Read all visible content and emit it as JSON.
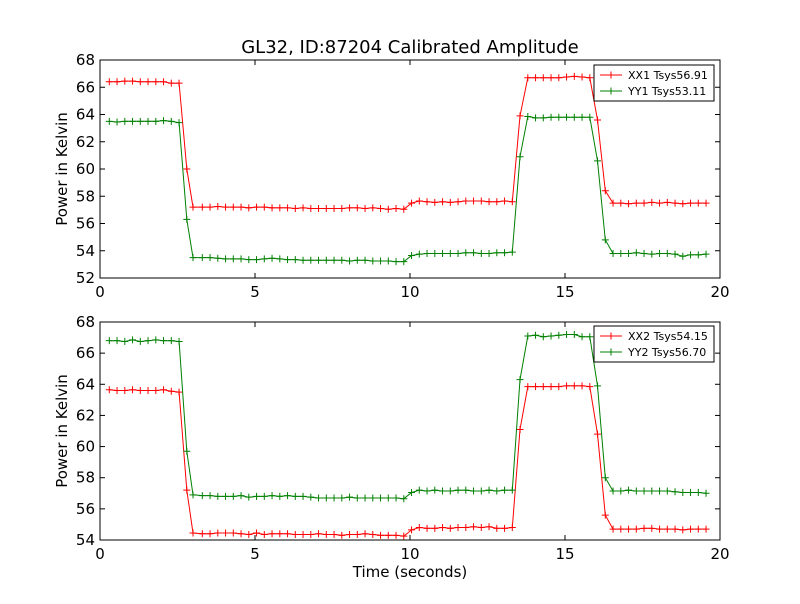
{
  "chart_data": [
    {
      "type": "line",
      "title": "GL32, ID:87204 Calibrated Amplitude",
      "xlabel": "",
      "ylabel": "Power in Kelvin",
      "xlim": [
        0,
        20
      ],
      "ylim": [
        52,
        68
      ],
      "xticks": [
        0,
        5,
        10,
        15,
        20
      ],
      "yticks": [
        52,
        54,
        56,
        58,
        60,
        62,
        64,
        66,
        68
      ],
      "legend_position": "top-right",
      "x": [
        0.3,
        0.55,
        0.8,
        1.05,
        1.3,
        1.55,
        1.8,
        2.05,
        2.3,
        2.55,
        2.8,
        3.0,
        3.3,
        3.55,
        3.8,
        4.05,
        4.3,
        4.55,
        4.8,
        5.05,
        5.3,
        5.55,
        5.8,
        6.05,
        6.3,
        6.55,
        6.8,
        7.05,
        7.3,
        7.55,
        7.8,
        8.05,
        8.3,
        8.55,
        8.8,
        9.05,
        9.3,
        9.55,
        9.8,
        10.05,
        10.3,
        10.55,
        10.8,
        11.05,
        11.3,
        11.55,
        11.8,
        12.05,
        12.3,
        12.55,
        12.8,
        13.05,
        13.3,
        13.55,
        13.8,
        14.05,
        14.3,
        14.55,
        14.8,
        15.05,
        15.3,
        15.55,
        15.8,
        16.05,
        16.3,
        16.55,
        16.8,
        17.05,
        17.3,
        17.55,
        17.8,
        18.05,
        18.3,
        18.55,
        18.8,
        19.05,
        19.3,
        19.55
      ],
      "series": [
        {
          "name": "XX1 Tsys56.91",
          "color": "#ff0000",
          "values": [
            66.4,
            66.4,
            66.45,
            66.45,
            66.4,
            66.4,
            66.4,
            66.4,
            66.3,
            66.3,
            60.0,
            57.2,
            57.2,
            57.2,
            57.25,
            57.2,
            57.2,
            57.2,
            57.15,
            57.2,
            57.2,
            57.15,
            57.15,
            57.15,
            57.1,
            57.15,
            57.1,
            57.1,
            57.1,
            57.1,
            57.1,
            57.15,
            57.15,
            57.1,
            57.15,
            57.1,
            57.05,
            57.1,
            57.05,
            57.5,
            57.65,
            57.6,
            57.55,
            57.6,
            57.55,
            57.6,
            57.65,
            57.65,
            57.65,
            57.6,
            57.6,
            57.65,
            57.6,
            63.9,
            66.7,
            66.7,
            66.7,
            66.7,
            66.7,
            66.75,
            66.8,
            66.75,
            66.7,
            63.6,
            58.4,
            57.5,
            57.5,
            57.45,
            57.5,
            57.5,
            57.55,
            57.5,
            57.55,
            57.5,
            57.45,
            57.5,
            57.5,
            57.5
          ]
        },
        {
          "name": "YY1 Tsys53.11",
          "color": "#008000",
          "values": [
            63.5,
            63.45,
            63.5,
            63.5,
            63.5,
            63.5,
            63.5,
            63.55,
            63.5,
            63.4,
            56.3,
            53.5,
            53.5,
            53.5,
            53.45,
            53.4,
            53.4,
            53.4,
            53.35,
            53.35,
            53.4,
            53.45,
            53.4,
            53.35,
            53.35,
            53.3,
            53.3,
            53.3,
            53.3,
            53.3,
            53.3,
            53.25,
            53.3,
            53.3,
            53.25,
            53.25,
            53.25,
            53.2,
            53.2,
            53.65,
            53.75,
            53.8,
            53.8,
            53.8,
            53.8,
            53.8,
            53.85,
            53.85,
            53.8,
            53.8,
            53.85,
            53.85,
            53.9,
            60.9,
            63.85,
            63.75,
            63.75,
            63.8,
            63.8,
            63.8,
            63.8,
            63.8,
            63.8,
            60.6,
            54.8,
            53.8,
            53.8,
            53.8,
            53.85,
            53.8,
            53.75,
            53.8,
            53.8,
            53.75,
            53.6,
            53.7,
            53.7,
            53.75
          ]
        }
      ]
    },
    {
      "type": "line",
      "title": "",
      "xlabel": "Time (seconds)",
      "ylabel": "Power in Kelvin",
      "xlim": [
        0,
        20
      ],
      "ylim": [
        54,
        68
      ],
      "xticks": [
        0,
        5,
        10,
        15,
        20
      ],
      "yticks": [
        54,
        56,
        58,
        60,
        62,
        64,
        66,
        68
      ],
      "legend_position": "top-right",
      "x": [
        0.3,
        0.55,
        0.8,
        1.05,
        1.3,
        1.55,
        1.8,
        2.05,
        2.3,
        2.55,
        2.8,
        3.0,
        3.3,
        3.55,
        3.8,
        4.05,
        4.3,
        4.55,
        4.8,
        5.05,
        5.3,
        5.55,
        5.8,
        6.05,
        6.3,
        6.55,
        6.8,
        7.05,
        7.3,
        7.55,
        7.8,
        8.05,
        8.3,
        8.55,
        8.8,
        9.05,
        9.3,
        9.55,
        9.8,
        10.05,
        10.3,
        10.55,
        10.8,
        11.05,
        11.3,
        11.55,
        11.8,
        12.05,
        12.3,
        12.55,
        12.8,
        13.05,
        13.3,
        13.55,
        13.8,
        14.05,
        14.3,
        14.55,
        14.8,
        15.05,
        15.3,
        15.55,
        15.8,
        16.05,
        16.3,
        16.55,
        16.8,
        17.05,
        17.3,
        17.55,
        17.8,
        18.05,
        18.3,
        18.55,
        18.8,
        19.05,
        19.3,
        19.55
      ],
      "series": [
        {
          "name": "XX2 Tsys54.15",
          "color": "#ff0000",
          "values": [
            63.65,
            63.6,
            63.6,
            63.65,
            63.6,
            63.6,
            63.6,
            63.65,
            63.55,
            63.5,
            57.2,
            54.45,
            54.4,
            54.4,
            54.45,
            54.45,
            54.45,
            54.4,
            54.35,
            54.45,
            54.35,
            54.4,
            54.4,
            54.4,
            54.35,
            54.35,
            54.35,
            54.4,
            54.35,
            54.35,
            54.3,
            54.35,
            54.35,
            54.4,
            54.35,
            54.3,
            54.3,
            54.3,
            54.25,
            54.65,
            54.8,
            54.75,
            54.75,
            54.8,
            54.75,
            54.8,
            54.8,
            54.85,
            54.8,
            54.85,
            54.75,
            54.75,
            54.8,
            61.1,
            63.85,
            63.85,
            63.85,
            63.85,
            63.85,
            63.9,
            63.9,
            63.9,
            63.85,
            60.8,
            55.6,
            54.7,
            54.7,
            54.7,
            54.7,
            54.75,
            54.75,
            54.7,
            54.7,
            54.7,
            54.65,
            54.7,
            54.7,
            54.7
          ]
        },
        {
          "name": "YY2 Tsys56.70",
          "color": "#008000",
          "values": [
            66.8,
            66.8,
            66.75,
            66.85,
            66.75,
            66.8,
            66.85,
            66.8,
            66.8,
            66.75,
            59.7,
            56.9,
            56.85,
            56.85,
            56.8,
            56.8,
            56.8,
            56.85,
            56.75,
            56.8,
            56.8,
            56.85,
            56.8,
            56.85,
            56.8,
            56.8,
            56.75,
            56.7,
            56.7,
            56.7,
            56.7,
            56.75,
            56.7,
            56.7,
            56.7,
            56.7,
            56.7,
            56.7,
            56.65,
            57.05,
            57.2,
            57.15,
            57.2,
            57.15,
            57.15,
            57.2,
            57.2,
            57.15,
            57.15,
            57.2,
            57.15,
            57.2,
            57.2,
            64.3,
            67.1,
            67.15,
            67.05,
            67.1,
            67.15,
            67.2,
            67.2,
            67.05,
            67.05,
            63.9,
            58.0,
            57.15,
            57.15,
            57.2,
            57.15,
            57.15,
            57.15,
            57.15,
            57.15,
            57.1,
            57.05,
            57.05,
            57.05,
            57.0
          ]
        }
      ]
    }
  ]
}
